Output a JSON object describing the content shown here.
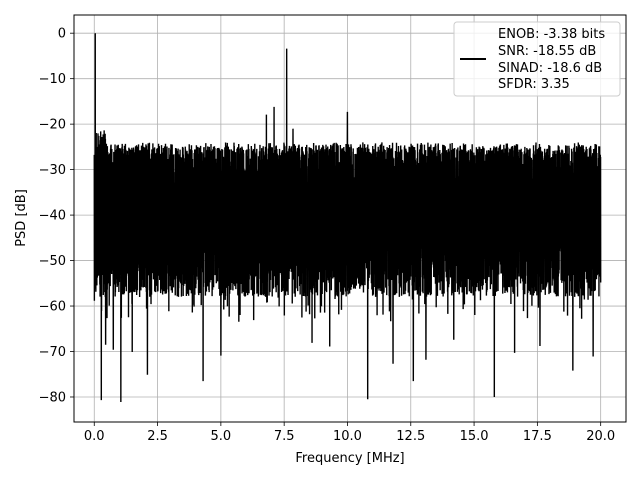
{
  "chart_data": {
    "type": "line",
    "xlabel": "Frequency [MHz]",
    "ylabel": "PSD [dB]",
    "xlim": [
      -0.8,
      21.0
    ],
    "ylim": [
      -85.5,
      4.0
    ],
    "x_ticks": [
      0.0,
      2.5,
      5.0,
      7.5,
      10.0,
      12.5,
      15.0,
      17.5,
      20.0
    ],
    "x_tick_labels": [
      "0.0",
      "2.5",
      "5.0",
      "7.5",
      "10.0",
      "12.5",
      "15.0",
      "17.5",
      "20.0"
    ],
    "y_ticks": [
      0,
      -10,
      -20,
      -30,
      -40,
      -50,
      -60,
      -70,
      -80
    ],
    "y_tick_labels": [
      "0",
      "−10",
      "−20",
      "−30",
      "−40",
      "−50",
      "−60",
      "−70",
      "−80"
    ],
    "grid": true,
    "legend_position": "top-right",
    "series": [
      {
        "legend_lines": [
          "ENOB: -3.38 bits",
          "SNR: -18.55 dB",
          "SINAD: -18.6 dB",
          "SFDR: 3.35"
        ],
        "color": "#000000",
        "noise": {
          "x_range": [
            0.0,
            20.0
          ],
          "upper_envelope": -24,
          "lower_envelope": -58,
          "samples": 4096
        },
        "peaks": [
          {
            "x": 0.04,
            "y": 0.0
          },
          {
            "x": 7.6,
            "y": -3.4
          },
          {
            "x": 7.1,
            "y": -16.2
          },
          {
            "x": 6.8,
            "y": -17.9
          },
          {
            "x": 10.0,
            "y": -17.3
          },
          {
            "x": 7.85,
            "y": -21.0
          }
        ],
        "dips": [
          {
            "x": 0.28,
            "y": -80.7
          },
          {
            "x": 1.05,
            "y": -81.1
          },
          {
            "x": 0.45,
            "y": -68.5
          },
          {
            "x": 0.75,
            "y": -69.6
          },
          {
            "x": 1.5,
            "y": -70.1
          },
          {
            "x": 2.1,
            "y": -75.1
          },
          {
            "x": 4.3,
            "y": -76.5
          },
          {
            "x": 5.0,
            "y": -70.9
          },
          {
            "x": 8.6,
            "y": -68.1
          },
          {
            "x": 9.3,
            "y": -68.9
          },
          {
            "x": 10.8,
            "y": -80.5
          },
          {
            "x": 11.8,
            "y": -72.7
          },
          {
            "x": 12.6,
            "y": -76.5
          },
          {
            "x": 13.1,
            "y": -71.8
          },
          {
            "x": 14.2,
            "y": -67.4
          },
          {
            "x": 15.8,
            "y": -80.0
          },
          {
            "x": 16.6,
            "y": -70.3
          },
          {
            "x": 17.6,
            "y": -68.8
          },
          {
            "x": 18.9,
            "y": -74.2
          },
          {
            "x": 19.7,
            "y": -71.1
          }
        ]
      }
    ]
  }
}
